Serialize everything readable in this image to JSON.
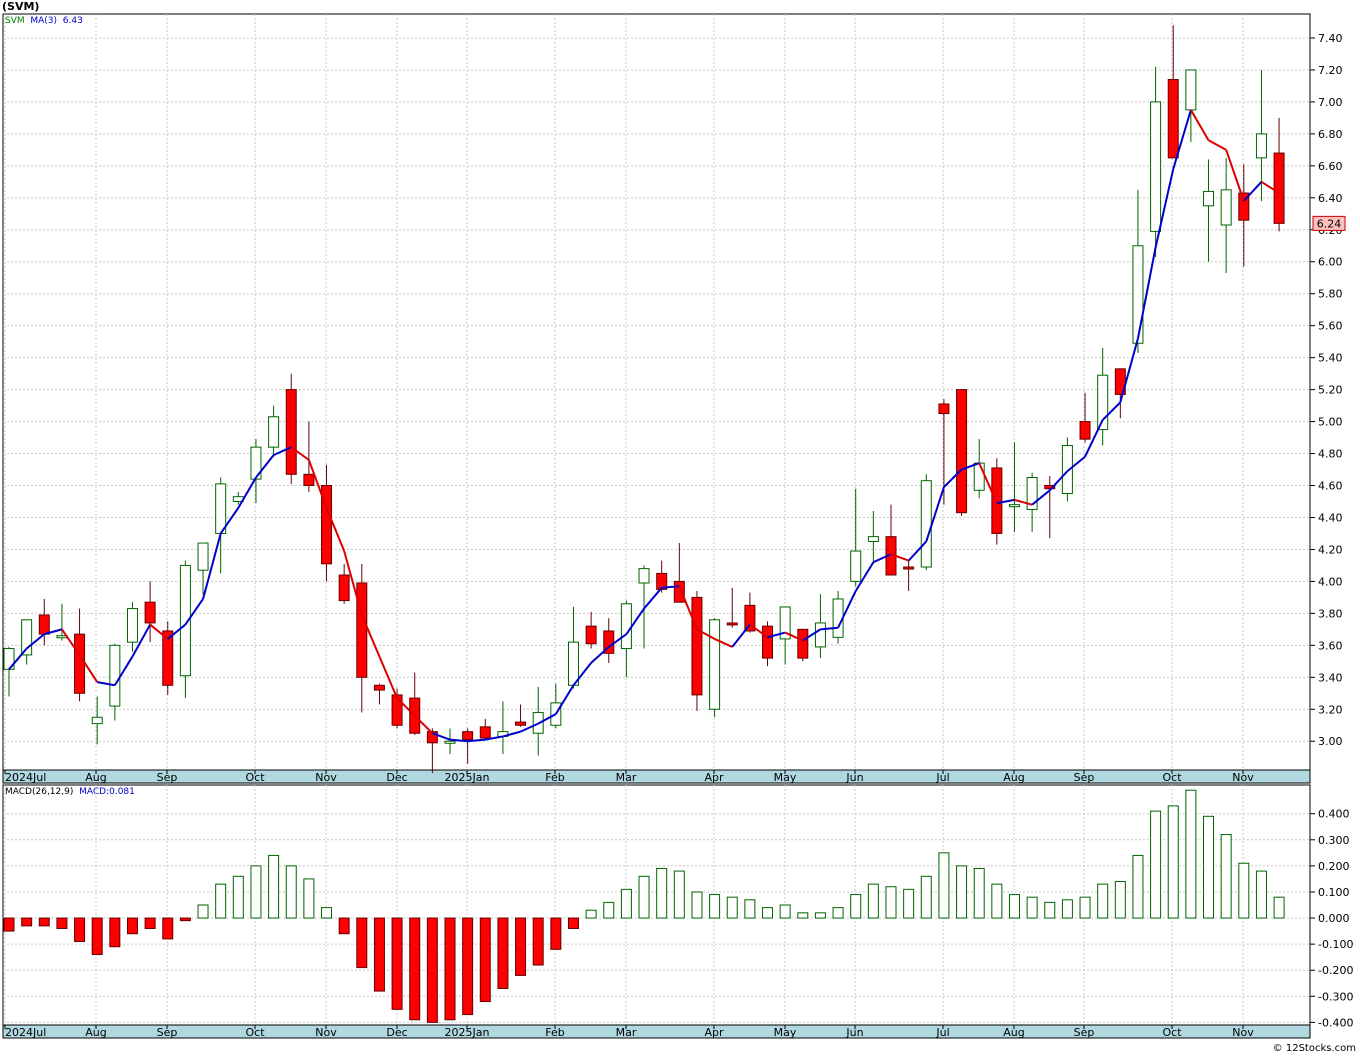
{
  "header": {
    "title": "(SVM)"
  },
  "price_legend": {
    "symbol": "SVM",
    "ma_label": "MA(3)",
    "ma_value": "6.43"
  },
  "macd_legend": {
    "label": "MACD(26,12,9)",
    "value": "MACD:0.081"
  },
  "last_price": "6.24",
  "copyright": "© 12Stocks.com",
  "colors": {
    "up": "#ffffff",
    "up_border": "#006400",
    "down": "#ff0000",
    "ma_up": "#0000cc",
    "ma_down": "#dd0000",
    "axis_bg": "#b0d8e0"
  },
  "x_labels": [
    "2024Jul",
    "Aug",
    "Sep",
    "Oct",
    "Nov",
    "Dec",
    "2025Jan",
    "Feb",
    "Mar",
    "Apr",
    "May",
    "Jun",
    "Jul",
    "Aug",
    "Sep",
    "Oct",
    "Nov"
  ],
  "chart_data": [
    {
      "type": "candlestick",
      "series_name": "SVM",
      "ylim": [
        2.82,
        7.55
      ],
      "y_ticks": [
        "3.00",
        "3.20",
        "3.40",
        "3.60",
        "3.80",
        "4.00",
        "4.20",
        "4.40",
        "4.60",
        "4.80",
        "5.00",
        "5.20",
        "5.40",
        "5.60",
        "5.80",
        "6.00",
        "6.20",
        "6.40",
        "6.60",
        "6.80",
        "7.00",
        "7.20",
        "7.40"
      ],
      "candles": [
        [
          3.45,
          3.59,
          3.28,
          3.58
        ],
        [
          3.54,
          3.76,
          3.48,
          3.76
        ],
        [
          3.79,
          3.89,
          3.6,
          3.67
        ],
        [
          3.65,
          3.86,
          3.63,
          3.66
        ],
        [
          3.67,
          3.83,
          3.25,
          3.3
        ],
        [
          3.11,
          3.28,
          2.98,
          3.15
        ],
        [
          3.22,
          3.61,
          3.13,
          3.6
        ],
        [
          3.62,
          3.87,
          3.56,
          3.83
        ],
        [
          3.87,
          4.0,
          3.62,
          3.74
        ],
        [
          3.69,
          3.75,
          3.29,
          3.35
        ],
        [
          3.41,
          4.13,
          3.27,
          4.1
        ],
        [
          4.07,
          4.23,
          3.92,
          4.24
        ],
        [
          4.3,
          4.65,
          4.05,
          4.61
        ],
        [
          4.5,
          4.56,
          4.48,
          4.53
        ],
        [
          4.64,
          4.89,
          4.49,
          4.84
        ],
        [
          4.84,
          5.1,
          4.78,
          5.03
        ],
        [
          5.2,
          5.3,
          4.61,
          4.67
        ],
        [
          4.67,
          5.0,
          4.56,
          4.6
        ],
        [
          4.6,
          4.73,
          4.0,
          4.11
        ],
        [
          4.04,
          4.11,
          3.86,
          3.88
        ],
        [
          3.99,
          4.11,
          3.18,
          3.4
        ],
        [
          3.35,
          3.36,
          3.23,
          3.32
        ],
        [
          3.29,
          3.33,
          3.08,
          3.1
        ],
        [
          3.27,
          3.43,
          3.04,
          3.05
        ],
        [
          3.06,
          3.08,
          2.8,
          2.99
        ],
        [
          2.99,
          3.08,
          2.92,
          3.0
        ],
        [
          3.06,
          3.08,
          2.86,
          3.01
        ],
        [
          3.09,
          3.14,
          3.01,
          3.02
        ],
        [
          3.03,
          3.25,
          2.92,
          3.06
        ],
        [
          3.12,
          3.23,
          3.09,
          3.1
        ],
        [
          3.05,
          3.34,
          2.91,
          3.18
        ],
        [
          3.1,
          3.36,
          3.08,
          3.24
        ],
        [
          3.35,
          3.84,
          3.33,
          3.62
        ],
        [
          3.72,
          3.81,
          3.58,
          3.61
        ],
        [
          3.69,
          3.77,
          3.49,
          3.55
        ],
        [
          3.58,
          3.88,
          3.4,
          3.86
        ],
        [
          3.99,
          4.1,
          3.58,
          4.08
        ],
        [
          4.05,
          4.13,
          3.93,
          3.95
        ],
        [
          4.0,
          4.24,
          3.87,
          3.87
        ],
        [
          3.9,
          3.94,
          3.19,
          3.29
        ],
        [
          3.2,
          3.77,
          3.15,
          3.76
        ],
        [
          3.74,
          3.96,
          3.71,
          3.73
        ],
        [
          3.85,
          3.93,
          3.68,
          3.69
        ],
        [
          3.72,
          3.75,
          3.47,
          3.52
        ],
        [
          3.64,
          3.82,
          3.48,
          3.84
        ],
        [
          3.7,
          3.7,
          3.5,
          3.52
        ],
        [
          3.59,
          3.92,
          3.52,
          3.74
        ],
        [
          3.65,
          3.94,
          3.61,
          3.89
        ],
        [
          4.0,
          4.58,
          3.97,
          4.19
        ],
        [
          4.25,
          4.44,
          4.11,
          4.28
        ],
        [
          4.28,
          4.48,
          4.04,
          4.04
        ],
        [
          4.09,
          4.13,
          3.94,
          4.08
        ],
        [
          4.09,
          4.67,
          4.07,
          4.63
        ],
        [
          5.11,
          5.14,
          4.48,
          5.05
        ],
        [
          5.2,
          5.2,
          4.41,
          4.43
        ],
        [
          4.57,
          4.89,
          4.52,
          4.74
        ],
        [
          4.71,
          4.77,
          4.23,
          4.3
        ],
        [
          4.47,
          4.87,
          4.31,
          4.48
        ],
        [
          4.45,
          4.68,
          4.31,
          4.65
        ],
        [
          4.6,
          4.66,
          4.27,
          4.58
        ],
        [
          4.55,
          4.9,
          4.5,
          4.85
        ],
        [
          5.0,
          5.18,
          4.87,
          4.89
        ],
        [
          4.95,
          5.46,
          4.85,
          5.29
        ],
        [
          5.33,
          5.33,
          5.02,
          5.17
        ],
        [
          5.49,
          6.45,
          5.43,
          6.1
        ],
        [
          6.19,
          7.22,
          6.03,
          7.0
        ],
        [
          7.14,
          7.48,
          6.65,
          6.65
        ],
        [
          6.95,
          7.2,
          6.75,
          7.2
        ],
        [
          6.35,
          6.64,
          6.0,
          6.44
        ],
        [
          6.23,
          6.65,
          5.93,
          6.45
        ],
        [
          6.43,
          6.61,
          5.97,
          6.26
        ],
        [
          6.65,
          7.2,
          6.38,
          6.8
        ],
        [
          6.68,
          6.9,
          6.19,
          6.24
        ]
      ],
      "ma3": [
        3.45,
        3.58,
        3.67,
        3.7,
        3.54,
        3.37,
        3.35,
        3.53,
        3.73,
        3.64,
        3.73,
        3.89,
        4.3,
        4.46,
        4.65,
        4.79,
        4.84,
        4.76,
        4.46,
        4.19,
        3.79,
        3.53,
        3.27,
        3.16,
        3.05,
        3.01,
        3.0,
        3.01,
        3.03,
        3.06,
        3.11,
        3.17,
        3.35,
        3.49,
        3.59,
        3.67,
        3.83,
        3.96,
        3.97,
        3.7,
        3.64,
        3.59,
        3.73,
        3.65,
        3.68,
        3.63,
        3.7,
        3.71,
        3.94,
        4.12,
        4.17,
        4.13,
        4.25,
        4.59,
        4.7,
        4.74,
        4.49,
        4.51,
        4.48,
        4.57,
        4.69,
        4.78,
        5.01,
        5.12,
        5.52,
        6.09,
        6.58,
        6.95,
        6.76,
        6.7,
        6.38,
        6.5,
        6.43
      ],
      "ma_state": [
        1,
        1,
        1,
        1,
        0,
        0,
        1,
        1,
        1,
        0,
        1,
        1,
        1,
        1,
        1,
        1,
        1,
        0,
        0,
        0,
        0,
        0,
        0,
        0,
        0,
        1,
        1,
        1,
        1,
        1,
        1,
        1,
        1,
        1,
        1,
        1,
        1,
        1,
        1,
        0,
        0,
        0,
        1,
        0,
        1,
        0,
        1,
        1,
        1,
        1,
        1,
        0,
        1,
        1,
        1,
        1,
        0,
        1,
        0,
        1,
        1,
        1,
        1,
        1,
        1,
        1,
        1,
        1,
        0,
        0,
        0,
        1,
        0
      ]
    },
    {
      "type": "bar",
      "series_name": "MACD(26,12,9)",
      "ylim": [
        -0.41,
        0.51
      ],
      "y_ticks": [
        "-0.400",
        "-0.300",
        "-0.200",
        "-0.100",
        "0.000",
        "0.100",
        "0.200",
        "0.300",
        "0.400"
      ],
      "values": [
        -0.05,
        -0.03,
        -0.03,
        -0.04,
        -0.09,
        -0.14,
        -0.11,
        -0.06,
        -0.04,
        -0.08,
        -0.01,
        0.05,
        0.13,
        0.16,
        0.2,
        0.24,
        0.2,
        0.15,
        0.04,
        -0.06,
        -0.19,
        -0.28,
        -0.35,
        -0.39,
        -0.4,
        -0.39,
        -0.37,
        -0.32,
        -0.27,
        -0.22,
        -0.18,
        -0.12,
        -0.04,
        0.03,
        0.06,
        0.11,
        0.16,
        0.19,
        0.18,
        0.1,
        0.09,
        0.08,
        0.07,
        0.04,
        0.05,
        0.02,
        0.02,
        0.04,
        0.09,
        0.13,
        0.12,
        0.11,
        0.16,
        0.25,
        0.2,
        0.19,
        0.13,
        0.09,
        0.08,
        0.06,
        0.07,
        0.08,
        0.13,
        0.14,
        0.24,
        0.41,
        0.43,
        0.49,
        0.39,
        0.32,
        0.21,
        0.18,
        0.08
      ]
    }
  ]
}
